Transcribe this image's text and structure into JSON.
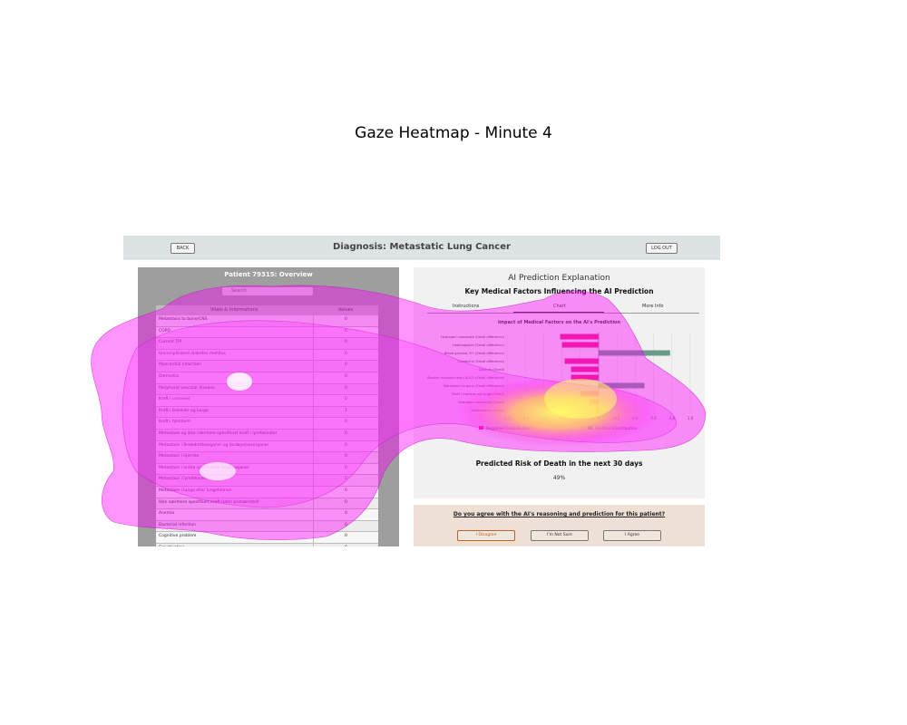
{
  "figure_title": "Gaze Heatmap - Minute 4",
  "header": {
    "back_label": "BACK",
    "title": "Diagnosis: Metastatic Lung Cancer",
    "logout_label": "LOG OUT"
  },
  "patient_panel": {
    "title": "Patient 79315: Overview",
    "search_placeholder": "Search",
    "columns": [
      "Vitals & Informations",
      "Values"
    ],
    "rows": [
      {
        "name": "Metastasis to bone/CNS",
        "value": "0"
      },
      {
        "name": "COPD",
        "value": "0"
      },
      {
        "name": "Current TIA",
        "value": "0"
      },
      {
        "name": "Uncomplicated diabetes mellitus",
        "value": "0"
      },
      {
        "name": "Myocardial infarction",
        "value": "0"
      },
      {
        "name": "Dementia",
        "value": "0"
      },
      {
        "name": "Peripheral vascular disease",
        "value": "0"
      },
      {
        "name": "Kreft i urinveier",
        "value": "0"
      },
      {
        "name": "Kreft i bronkier og lunge",
        "value": "1"
      },
      {
        "name": "Kreft i tykktarm",
        "value": "0"
      },
      {
        "name": "Metastase og ikke nærmere spesifisert kreft i lymfeknuter",
        "value": "0"
      },
      {
        "name": "Metastase i åndedrettsorganer og fordøyelsesorganer",
        "value": "0"
      },
      {
        "name": "Metastase i hjernen",
        "value": "0"
      },
      {
        "name": "Metastase i andre spesifiserte lokalisasjoner",
        "value": "0"
      },
      {
        "name": "Metastase i lymfeknuter",
        "value": "0"
      },
      {
        "name": "Metastase i lunge eller lungehinnen",
        "value": "0"
      },
      {
        "name": "Ikke nærmere spesifisert kreft (uten primærsted)",
        "value": "0"
      },
      {
        "name": "Anemia",
        "value": "0"
      },
      {
        "name": "Bacterial infection",
        "value": "0"
      },
      {
        "name": "Cognitive problem",
        "value": "0"
      },
      {
        "name": "Constipation",
        "value": "0"
      }
    ]
  },
  "explanation_panel": {
    "title": "AI Prediction Explanation",
    "subtitle": "Key Medical Factors Influencing the AI Prediction",
    "tabs": [
      "Instructions",
      "Chart",
      "More Info"
    ],
    "active_tab": "Chart",
    "risk_title": "Predicted Risk of Death in the next 30 days",
    "risk_value": "49%"
  },
  "chart_data": {
    "type": "bar",
    "orientation": "horizontal",
    "title": "Impact of Medical Factors on the AI's Prediction",
    "categories": [
      "Hydrogen carbonate (Small difference)",
      "Haemoglobin (Small difference)",
      "Blood glucose, B+ (Small difference)",
      "Creatinine (Small difference)",
      "Calcium (Small)",
      "Alanine transaminase (ALAT) (Small difference)",
      "Metastasis to bone (Small difference)",
      "Kreft i bronkier og lunge (Small)",
      "Hydrogen carbonate (Small)",
      "Constipation (Small)"
    ],
    "values": [
      -0.42,
      -0.4,
      0.78,
      -0.37,
      -0.3,
      -0.3,
      0.5,
      -0.2,
      -0.1,
      -0.02
    ],
    "xlim": [
      -1.0,
      1.0
    ],
    "xticks": [
      "-1.0",
      "-0.8",
      "-0.6",
      "-0.4",
      "-0.2",
      "0",
      "0.2",
      "0.4",
      "0.6",
      "0.8",
      "1.0"
    ],
    "legend": [
      "Negative Contribution",
      "Positive Contribution"
    ],
    "legend_position": "bottom",
    "colors": {
      "negative": "#e8287e",
      "positive": "#6a9c87"
    }
  },
  "decision_panel": {
    "question": "Do you agree with the AI's reasoning and prediction for this patient?",
    "buttons": [
      "I Disagree",
      "I'm Not Sure",
      "I Agree"
    ]
  },
  "heatmap_colors": {
    "low": "#ff00ff",
    "high": "#ffff66"
  }
}
